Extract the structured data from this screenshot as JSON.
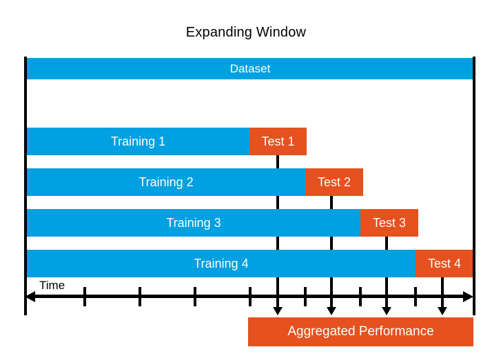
{
  "title": "Expanding Window",
  "dataset": {
    "label": "Dataset"
  },
  "folds": [
    {
      "training": "Training 1",
      "test": "Test 1"
    },
    {
      "training": "Training 2",
      "test": "Test 2"
    },
    {
      "training": "Training 3",
      "test": "Test 3"
    },
    {
      "training": "Training 4",
      "test": "Test 4"
    }
  ],
  "axis": {
    "label": "Time"
  },
  "aggregated": {
    "label": "Aggregated Performance"
  },
  "colors": {
    "bar_blue": "#01A0E0",
    "accent_orange": "#E5511F",
    "line_black": "#000000"
  }
}
